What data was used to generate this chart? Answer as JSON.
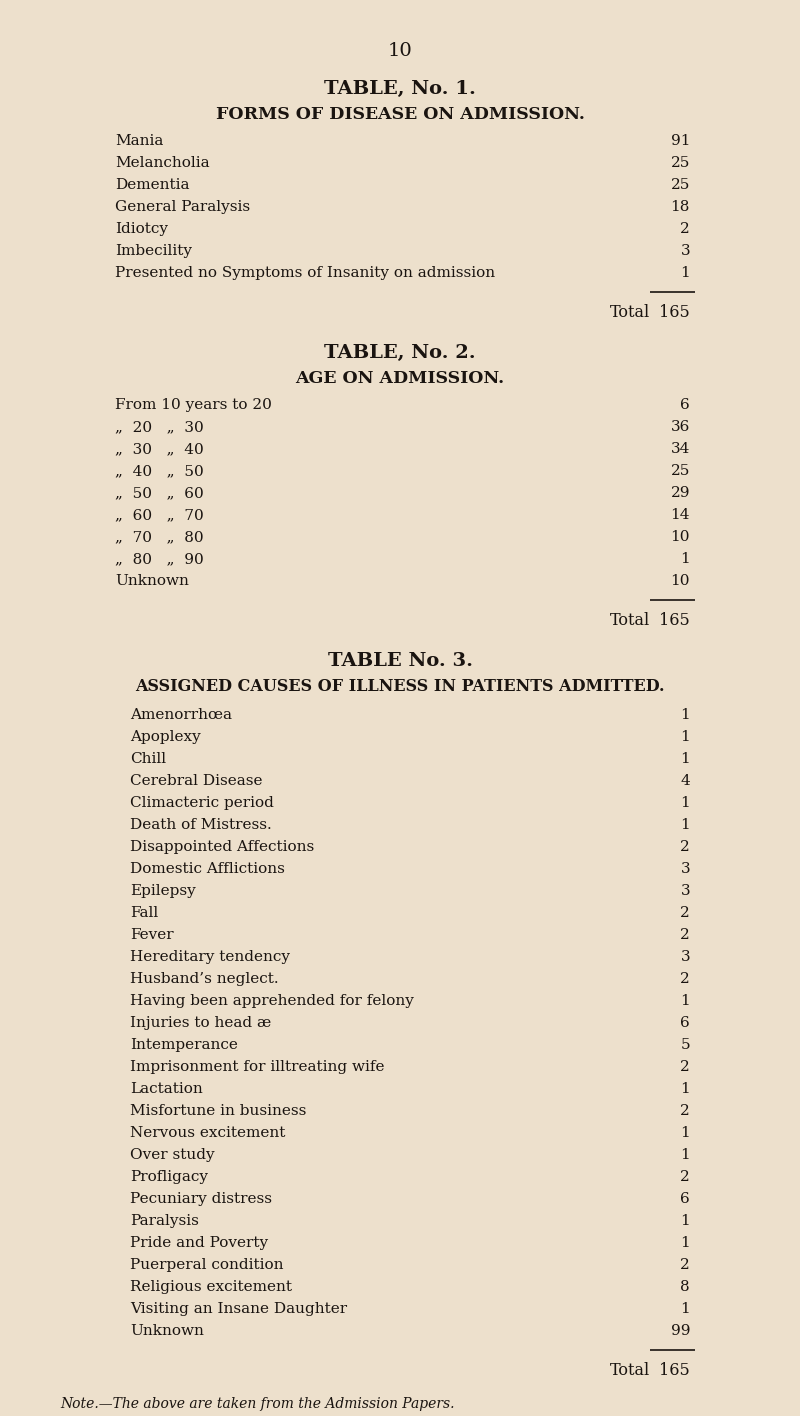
{
  "background_color": "#ede0cc",
  "text_color": "#1a1410",
  "page_number": "10",
  "table1_title": "TABLE, No. 1.",
  "table1_subtitle": "FORMS OF DISEASE ON ADMISSION.",
  "table1_rows": [
    [
      "Mania",
      "91"
    ],
    [
      "Melancholia",
      "25"
    ],
    [
      "Dementia",
      "25"
    ],
    [
      "General Paralysis",
      "18"
    ],
    [
      "Idiotcy",
      "2"
    ],
    [
      "Imbecility",
      "3"
    ],
    [
      "Presented no Symptoms of Insanity on admission",
      "1"
    ]
  ],
  "table1_total": "165",
  "table2_title": "TABLE, No. 2.",
  "table2_subtitle": "AGE ON ADMISSION.",
  "table2_rows": [
    [
      "From 10 years to 20",
      "6"
    ],
    [
      "„  20   „  30",
      "36"
    ],
    [
      "„  30   „  40",
      "34"
    ],
    [
      "„  40   „  50",
      "25"
    ],
    [
      "„  50   „  60",
      "29"
    ],
    [
      "„  60   „  70",
      "14"
    ],
    [
      "„  70   „  80",
      "10"
    ],
    [
      "„  80   „  90",
      "1"
    ],
    [
      "Unknown",
      "10"
    ]
  ],
  "table2_total": "165",
  "table3_title": "TABLE No. 3.",
  "table3_subtitle": "ASSIGNED CAUSES OF ILLNESS IN PATIENTS ADMITTED.",
  "table3_rows": [
    [
      "Amenorrhœa",
      "1"
    ],
    [
      "Apoplexy",
      "1"
    ],
    [
      "Chill",
      "1"
    ],
    [
      "Cerebral Disease",
      "4"
    ],
    [
      "Climacteric period",
      "1"
    ],
    [
      "Death of Mistress.",
      "1"
    ],
    [
      "Disappointed Affections",
      "2"
    ],
    [
      "Domestic Afflictions",
      "3"
    ],
    [
      "Epilepsy",
      "3"
    ],
    [
      "Fall",
      "2"
    ],
    [
      "Fever",
      "2"
    ],
    [
      "Hereditary tendency",
      "3"
    ],
    [
      "Husband’s neglect.",
      "2"
    ],
    [
      "Having been apprehended for felony",
      "1"
    ],
    [
      "Injuries to head æ",
      "6"
    ],
    [
      "Intemperance",
      "5"
    ],
    [
      "Imprisonment for illtreating wife",
      "2"
    ],
    [
      "Lactation",
      "1"
    ],
    [
      "Misfortune in business",
      "2"
    ],
    [
      "Nervous excitement",
      "1"
    ],
    [
      "Over study",
      "1"
    ],
    [
      "Profligacy",
      "2"
    ],
    [
      "Pecuniary distress",
      "6"
    ],
    [
      "Paralysis",
      "1"
    ],
    [
      "Pride and Poverty",
      "1"
    ],
    [
      "Puerperal condition",
      "2"
    ],
    [
      "Religious excitement",
      "8"
    ],
    [
      "Visiting an Insane Daughter",
      "1"
    ],
    [
      "Unknown",
      "99"
    ]
  ],
  "table3_total": "165",
  "note": "Note.—The above are taken from the Admission Papers."
}
